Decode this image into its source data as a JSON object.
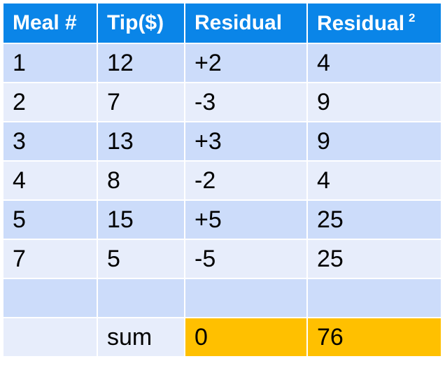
{
  "table": {
    "headers": [
      "Meal #",
      "Tip($)",
      "Residual",
      "Residual"
    ],
    "header_superscript": "2",
    "rows": [
      {
        "meal": "1",
        "tip": "12",
        "residual": "+2",
        "residual_sq": "4"
      },
      {
        "meal": "2",
        "tip": "7",
        "residual": "-3",
        "residual_sq": "9"
      },
      {
        "meal": "3",
        "tip": "13",
        "residual": "+3",
        "residual_sq": "9"
      },
      {
        "meal": "4",
        "tip": "8",
        "residual": "-2",
        "residual_sq": "4"
      },
      {
        "meal": "5",
        "tip": "15",
        "residual": "+5",
        "residual_sq": "25"
      },
      {
        "meal": "7",
        "tip": "5",
        "residual": "-5",
        "residual_sq": "25"
      },
      {
        "meal": "",
        "tip": "",
        "residual": "",
        "residual_sq": ""
      }
    ],
    "sum_row": {
      "label": "sum",
      "residual_sum": "0",
      "residual_sq_sum": "76"
    }
  },
  "colors": {
    "header_bg": "#0a85e8",
    "row_dark": "#ccdcfa",
    "row_light": "#e7edfb",
    "highlight": "#ffc000"
  }
}
